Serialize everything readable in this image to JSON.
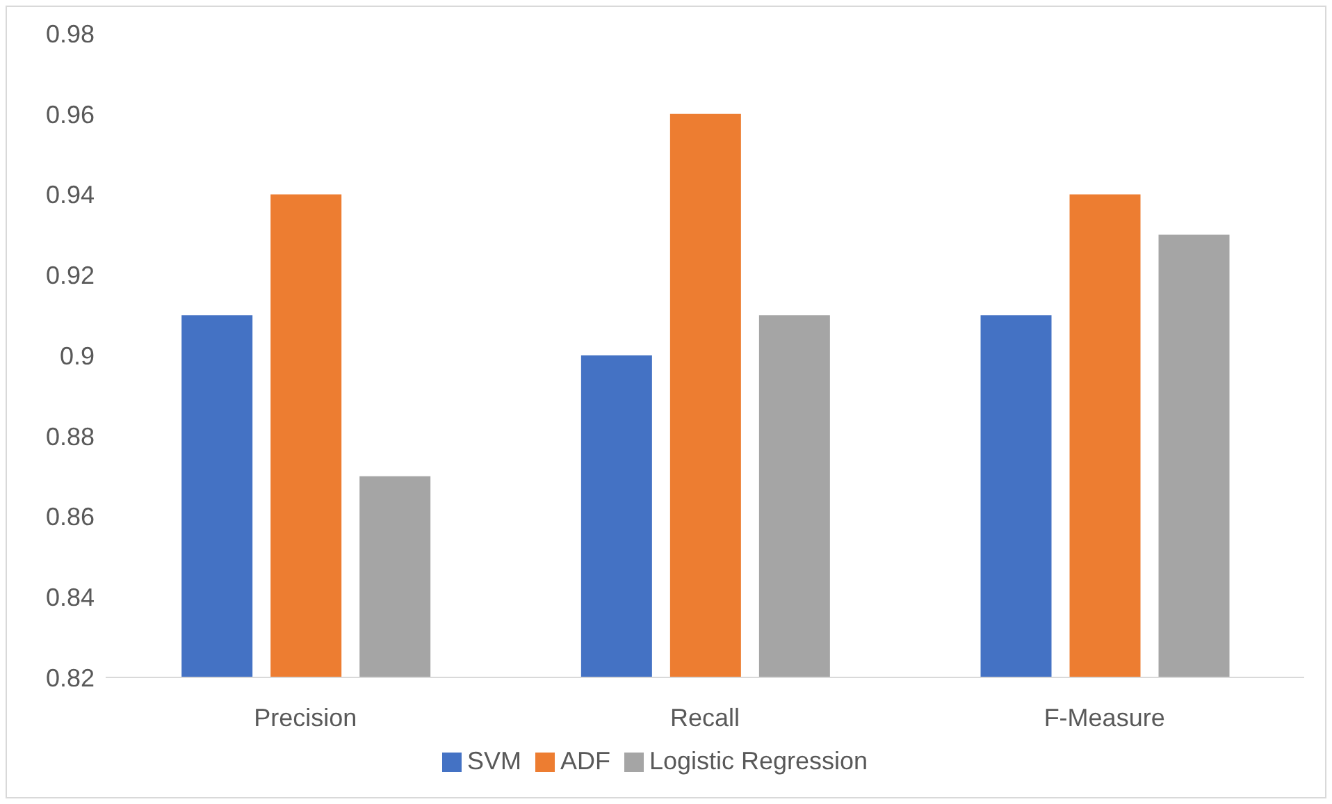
{
  "chart_data": {
    "type": "bar",
    "categories": [
      "Precision",
      "Recall",
      "F-Measure"
    ],
    "series": [
      {
        "name": "SVM",
        "color": "#4472c4",
        "values": [
          0.91,
          0.9,
          0.91
        ]
      },
      {
        "name": "ADF",
        "color": "#ed7d31",
        "values": [
          0.94,
          0.96,
          0.94
        ]
      },
      {
        "name": "Logistic Regression",
        "color": "#a5a5a5",
        "values": [
          0.87,
          0.91,
          0.93
        ]
      }
    ],
    "ylim": [
      0.82,
      0.98
    ],
    "yticks": [
      0.82,
      0.84,
      0.86,
      0.88,
      0.9,
      0.92,
      0.94,
      0.96,
      0.98
    ],
    "grid": false,
    "legend": "bottom"
  }
}
